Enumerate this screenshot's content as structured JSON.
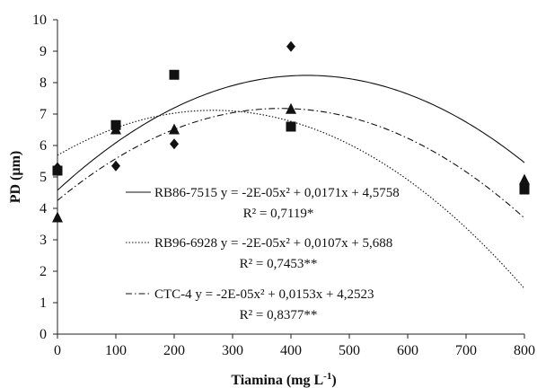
{
  "chart_data": {
    "type": "scatter",
    "title": "",
    "xlabel": "Tiamina (mg L",
    "xlabel_sup": "-1",
    "xlabel_tail": ")",
    "ylabel": "PD (µm)",
    "xlim": [
      0,
      800
    ],
    "ylim": [
      0,
      10
    ],
    "x_ticks": [
      0,
      100,
      200,
      300,
      400,
      500,
      600,
      700,
      800
    ],
    "y_ticks": [
      0,
      1,
      2,
      3,
      4,
      5,
      6,
      7,
      8,
      9,
      10
    ],
    "grid": false,
    "legend_position": "bottom-center",
    "x": [
      0,
      100,
      200,
      400,
      800
    ],
    "series": [
      {
        "name": "RB86-7515",
        "marker": "diamond",
        "line_style": "solid",
        "values": [
          5.3,
          5.35,
          6.05,
          9.15,
          4.75
        ],
        "fit": {
          "a": -2e-05,
          "b": 0.0171,
          "c": 4.5758
        },
        "equation": "RB86-7515 y = -2E-05x² + 0,0171x + 4,5758",
        "r2": "R² = 0,7119*"
      },
      {
        "name": "RB96-6928",
        "marker": "square",
        "line_style": "dotted",
        "values": [
          5.2,
          6.65,
          8.25,
          6.6,
          4.6
        ],
        "fit": {
          "a": -2e-05,
          "b": 0.0107,
          "c": 5.688
        },
        "equation": "RB96-6928 y = -2E-05x² + 0,0107x + 5,688",
        "r2": "R² = 0,7453**"
      },
      {
        "name": "CTC-4",
        "marker": "triangle",
        "line_style": "dashdot",
        "values": [
          3.7,
          6.5,
          6.5,
          7.15,
          4.9
        ],
        "fit": {
          "a": -2e-05,
          "b": 0.0153,
          "c": 4.2523
        },
        "equation": "CTC-4 y = -2E-05x² + 0,0153x + 4,2523",
        "r2": "R² = 0,8377**"
      }
    ]
  }
}
